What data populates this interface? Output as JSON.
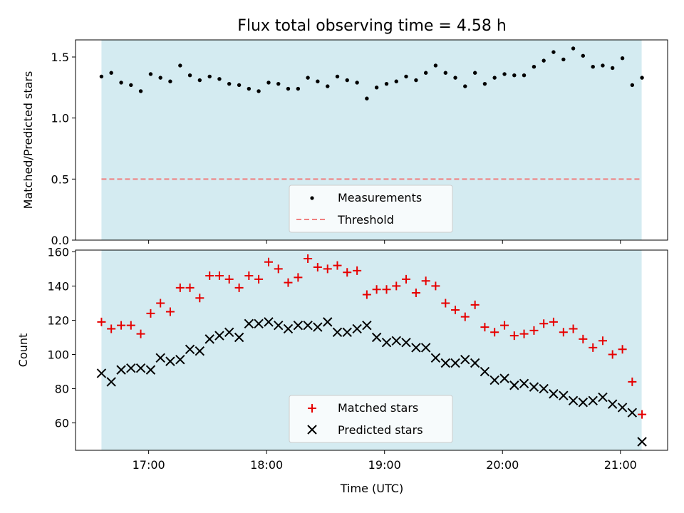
{
  "chart_data": [
    {
      "type": "scatter",
      "title": "Flux total observing time = 4.58 h",
      "ylabel": "Matched/Predicted stars",
      "xlabel": "",
      "xlim": [
        16.38,
        21.4
      ],
      "ylim": [
        0,
        1.64
      ],
      "yticks": [
        0.0,
        0.5,
        1.0,
        1.5
      ],
      "ytick_labels": [
        "0.0",
        "0.5",
        "1.0",
        "1.5"
      ],
      "observing_window": [
        16.6,
        21.18
      ],
      "observing_window_color": "#d4ebf1",
      "legend_position": "lower-center",
      "series": [
        {
          "name": "Measurements",
          "marker": "dot",
          "color": "#000000",
          "x": [
            16.6,
            16.683,
            16.767,
            16.85,
            16.933,
            17.017,
            17.1,
            17.183,
            17.267,
            17.35,
            17.433,
            17.517,
            17.6,
            17.683,
            17.767,
            17.85,
            17.933,
            18.017,
            18.1,
            18.183,
            18.267,
            18.35,
            18.433,
            18.517,
            18.6,
            18.683,
            18.767,
            18.85,
            18.933,
            19.017,
            19.1,
            19.183,
            19.267,
            19.35,
            19.433,
            19.517,
            19.6,
            19.683,
            19.767,
            19.85,
            19.933,
            20.017,
            20.1,
            20.183,
            20.267,
            20.35,
            20.433,
            20.517,
            20.6,
            20.683,
            20.767,
            20.85,
            20.933,
            21.017,
            21.1,
            21.183
          ],
          "y": [
            1.34,
            1.37,
            1.29,
            1.27,
            1.22,
            1.36,
            1.33,
            1.3,
            1.43,
            1.35,
            1.31,
            1.34,
            1.32,
            1.28,
            1.27,
            1.24,
            1.22,
            1.29,
            1.28,
            1.24,
            1.24,
            1.33,
            1.3,
            1.26,
            1.34,
            1.31,
            1.29,
            1.16,
            1.25,
            1.28,
            1.3,
            1.34,
            1.31,
            1.37,
            1.43,
            1.37,
            1.33,
            1.26,
            1.37,
            1.28,
            1.33,
            1.36,
            1.35,
            1.35,
            1.42,
            1.47,
            1.54,
            1.48,
            1.57,
            1.51,
            1.42,
            1.43,
            1.41,
            1.49,
            1.27,
            1.33
          ]
        },
        {
          "name": "Threshold",
          "marker": "dashed-line",
          "color": "#f08080",
          "x": [
            16.6,
            21.18
          ],
          "y": [
            0.5,
            0.5
          ]
        }
      ]
    },
    {
      "type": "scatter",
      "title": "",
      "ylabel": "Count",
      "xlabel": "Time (UTC)",
      "xlim": [
        16.38,
        21.4
      ],
      "ylim": [
        44,
        161
      ],
      "yticks": [
        60,
        80,
        100,
        120,
        140,
        160
      ],
      "ytick_labels": [
        "60",
        "80",
        "100",
        "120",
        "140",
        "160"
      ],
      "xticks": [
        17,
        18,
        19,
        20,
        21
      ],
      "xtick_labels": [
        "17:00",
        "18:00",
        "19:00",
        "20:00",
        "21:00"
      ],
      "observing_window": [
        16.6,
        21.18
      ],
      "observing_window_color": "#d4ebf1",
      "legend_position": "lower-center",
      "series": [
        {
          "name": "Matched stars",
          "marker": "plus",
          "color": "#e60000",
          "x": [
            16.6,
            16.683,
            16.767,
            16.85,
            16.933,
            17.017,
            17.1,
            17.183,
            17.267,
            17.35,
            17.433,
            17.517,
            17.6,
            17.683,
            17.767,
            17.85,
            17.933,
            18.017,
            18.1,
            18.183,
            18.267,
            18.35,
            18.433,
            18.517,
            18.6,
            18.683,
            18.767,
            18.85,
            18.933,
            19.017,
            19.1,
            19.183,
            19.267,
            19.35,
            19.433,
            19.517,
            19.6,
            19.683,
            19.767,
            19.85,
            19.933,
            20.017,
            20.1,
            20.183,
            20.267,
            20.35,
            20.433,
            20.517,
            20.6,
            20.683,
            20.767,
            20.85,
            20.933,
            21.017,
            21.1,
            21.183
          ],
          "y": [
            119,
            115,
            117,
            117,
            112,
            124,
            130,
            125,
            139,
            139,
            133,
            146,
            146,
            144,
            139,
            146,
            144,
            154,
            150,
            142,
            145,
            156,
            151,
            150,
            152,
            148,
            149,
            135,
            138,
            138,
            140,
            144,
            136,
            143,
            140,
            130,
            126,
            122,
            129,
            116,
            113,
            117,
            111,
            112,
            114,
            118,
            119,
            113,
            115,
            109,
            104,
            108,
            100,
            103,
            84,
            65
          ]
        },
        {
          "name": "Predicted stars",
          "marker": "x",
          "color": "#000000",
          "x": [
            16.6,
            16.683,
            16.767,
            16.85,
            16.933,
            17.017,
            17.1,
            17.183,
            17.267,
            17.35,
            17.433,
            17.517,
            17.6,
            17.683,
            17.767,
            17.85,
            17.933,
            18.017,
            18.1,
            18.183,
            18.267,
            18.35,
            18.433,
            18.517,
            18.6,
            18.683,
            18.767,
            18.85,
            18.933,
            19.017,
            19.1,
            19.183,
            19.267,
            19.35,
            19.433,
            19.517,
            19.6,
            19.683,
            19.767,
            19.85,
            19.933,
            20.017,
            20.1,
            20.183,
            20.267,
            20.35,
            20.433,
            20.517,
            20.6,
            20.683,
            20.767,
            20.85,
            20.933,
            21.017,
            21.1,
            21.183
          ],
          "y": [
            89,
            84,
            91,
            92,
            92,
            91,
            98,
            96,
            97,
            103,
            102,
            109,
            111,
            113,
            110,
            118,
            118,
            119,
            117,
            115,
            117,
            117,
            116,
            119,
            113,
            113,
            115,
            117,
            110,
            107,
            108,
            107,
            104,
            104,
            98,
            95,
            95,
            97,
            95,
            90,
            85,
            86,
            82,
            83,
            81,
            80,
            77,
            76,
            73,
            72,
            73,
            75,
            71,
            69,
            66,
            49
          ]
        }
      ]
    }
  ]
}
